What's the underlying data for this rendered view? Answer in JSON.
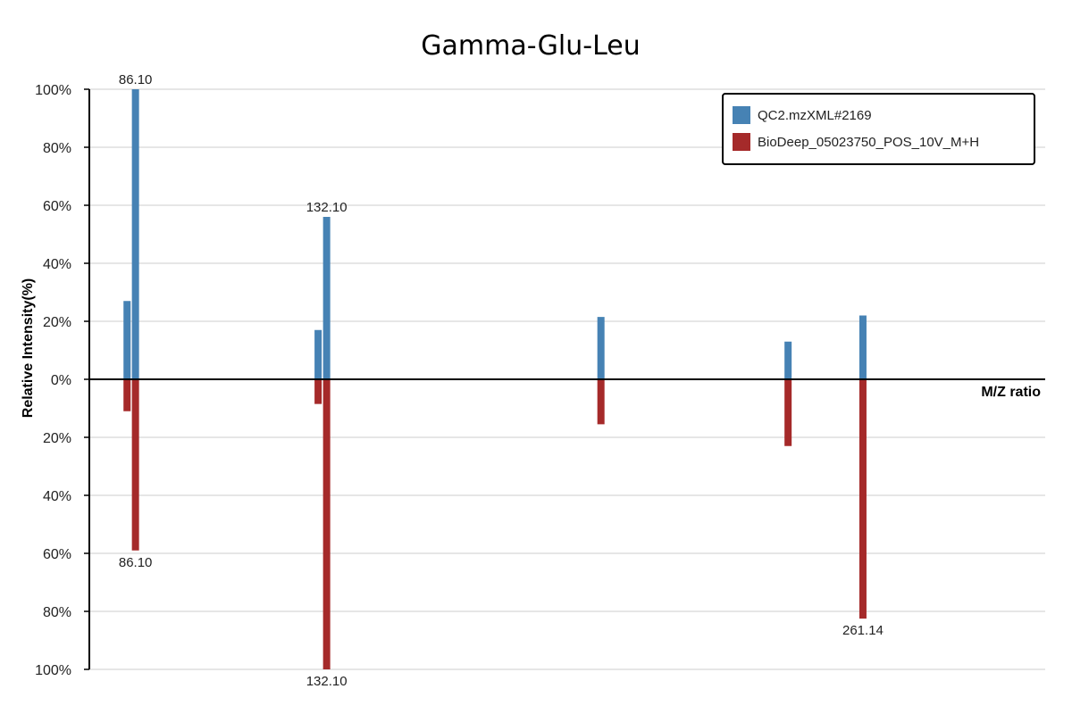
{
  "chart_data": {
    "type": "bar",
    "title": "Gamma-Glu-Leu",
    "xlabel": "M/Z ratio",
    "ylabel": "Relative Intensity(%)",
    "ylim_top": [
      0,
      100
    ],
    "ylim_bottom": [
      0,
      100
    ],
    "yticks_top": [
      "0%",
      "20%",
      "40%",
      "60%",
      "80%",
      "100%"
    ],
    "yticks_bottom": [
      "20%",
      "40%",
      "60%",
      "80%",
      "100%"
    ],
    "xlim": [
      75,
      305
    ],
    "grid": true,
    "legend_position": "top-right",
    "series": [
      {
        "name": "QC2.mzXML#2169",
        "color": "#4682b4",
        "direction": "up",
        "peaks": [
          {
            "mz": 84.08,
            "intensity": 27
          },
          {
            "mz": 86.1,
            "intensity": 100,
            "label": "86.10"
          },
          {
            "mz": 130.05,
            "intensity": 17
          },
          {
            "mz": 132.1,
            "intensity": 56,
            "label": "132.10"
          },
          {
            "mz": 198.1,
            "intensity": 21.5
          },
          {
            "mz": 243.13,
            "intensity": 13
          },
          {
            "mz": 261.14,
            "intensity": 22
          }
        ]
      },
      {
        "name": "BioDeep_05023750_POS_10V_M+H",
        "color": "#a52a2a",
        "direction": "down",
        "peaks": [
          {
            "mz": 84.08,
            "intensity": 11
          },
          {
            "mz": 86.1,
            "intensity": 59,
            "label": "86.10"
          },
          {
            "mz": 130.05,
            "intensity": 8.5
          },
          {
            "mz": 132.1,
            "intensity": 100,
            "label": "132.10"
          },
          {
            "mz": 198.1,
            "intensity": 15.5
          },
          {
            "mz": 243.13,
            "intensity": 23
          },
          {
            "mz": 261.14,
            "intensity": 82.5,
            "label": "261.14"
          }
        ]
      }
    ]
  }
}
